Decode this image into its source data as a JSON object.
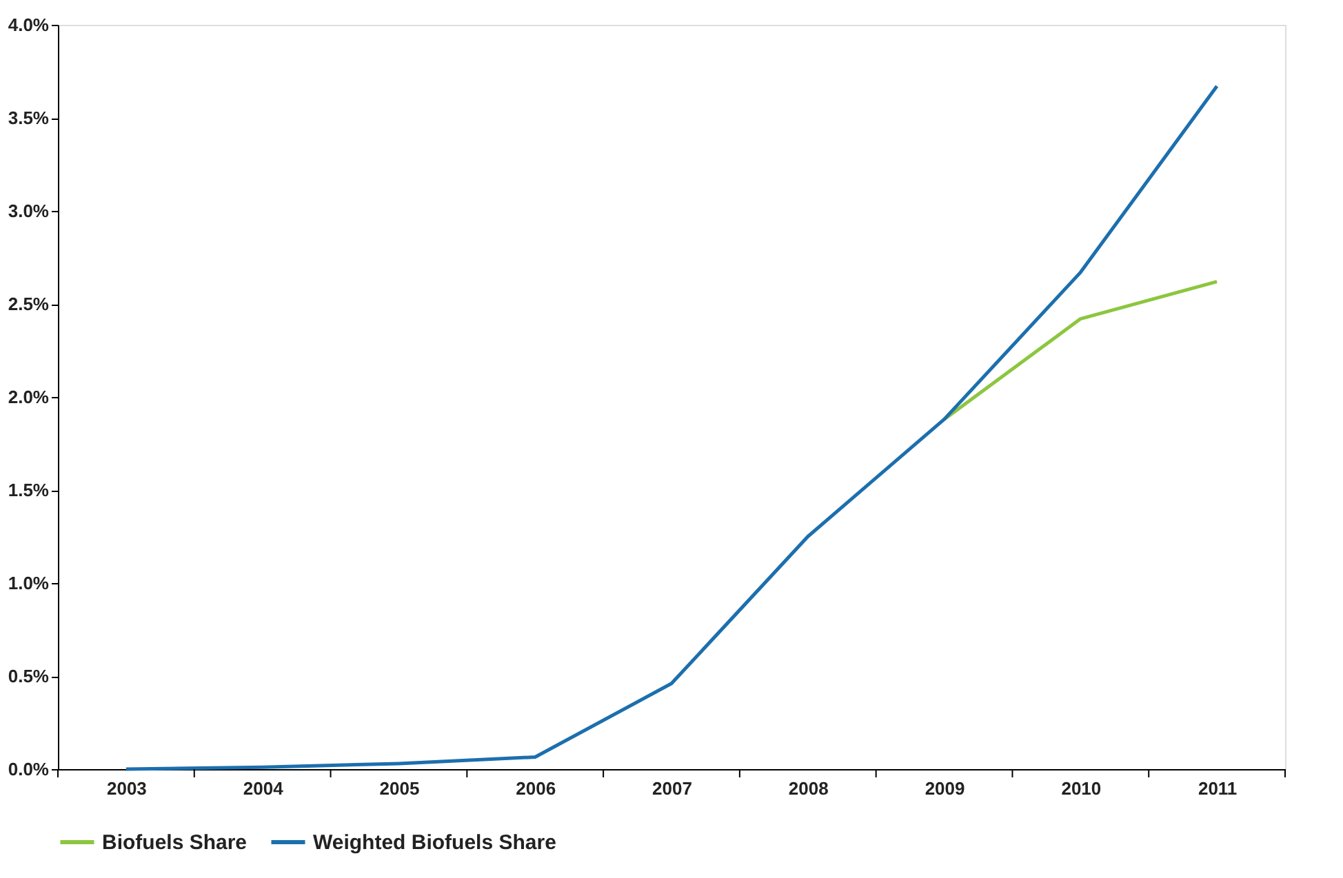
{
  "chart_data": {
    "type": "line",
    "categories": [
      "2003",
      "2004",
      "2005",
      "2006",
      "2007",
      "2008",
      "2009",
      "2010",
      "2011"
    ],
    "series": [
      {
        "name": "Biofuels Share",
        "color": "#8cc63f",
        "values": [
          null,
          null,
          null,
          null,
          null,
          null,
          1.88,
          2.42,
          2.62
        ]
      },
      {
        "name": "Weighted Biofuels Share",
        "color": "#1c6fae",
        "values": [
          0,
          0.01,
          0.03,
          0.065,
          0.46,
          1.25,
          1.88,
          2.67,
          3.67
        ]
      }
    ],
    "ylim": [
      0,
      4
    ],
    "yticks": [
      {
        "value": 0,
        "label": "0.0%"
      },
      {
        "value": 0.5,
        "label": "0.5%"
      },
      {
        "value": 1,
        "label": "1.0%"
      },
      {
        "value": 1.5,
        "label": "1.5%"
      },
      {
        "value": 2,
        "label": "2.0%"
      },
      {
        "value": 2.5,
        "label": "2.5%"
      },
      {
        "value": 3,
        "label": "3.0%"
      },
      {
        "value": 3.5,
        "label": "3.5%"
      },
      {
        "value": 4,
        "label": "4.0%"
      }
    ],
    "grid": false,
    "legend": "bottom",
    "marker": "none",
    "line_style": "solid"
  }
}
